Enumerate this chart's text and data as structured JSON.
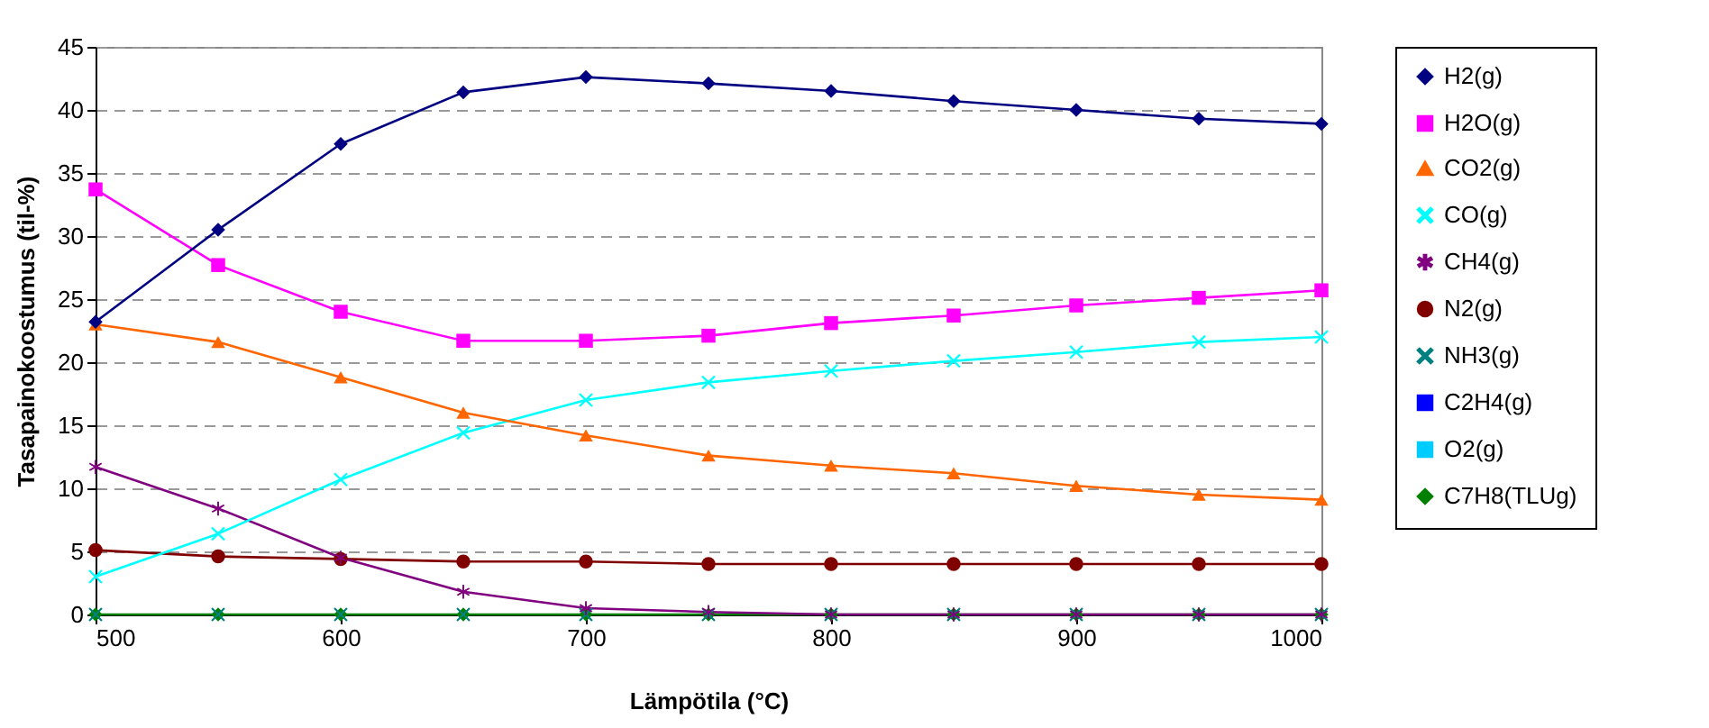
{
  "chart_data": {
    "type": "line",
    "xlabel": "Lämpötila (°C)",
    "ylabel": "Tasapainokoostumus (til-%)",
    "x": [
      500,
      550,
      600,
      650,
      700,
      750,
      800,
      850,
      900,
      950,
      1000
    ],
    "xlim": [
      500,
      1000
    ],
    "xticks": [
      500,
      600,
      700,
      800,
      900,
      1000
    ],
    "ylim": [
      0,
      45
    ],
    "yticks": [
      0,
      5,
      10,
      15,
      20,
      25,
      30,
      35,
      40,
      45
    ],
    "grid": "y",
    "legend": "right",
    "series": [
      {
        "name": "H2(g)",
        "color": "#000080",
        "marker": "diamond",
        "values": [
          23.2,
          30.5,
          37.3,
          41.4,
          42.6,
          42.1,
          41.5,
          40.7,
          40.0,
          39.3,
          38.9
        ]
      },
      {
        "name": "H2O(g)",
        "color": "#ff00ff",
        "marker": "square",
        "values": [
          33.7,
          27.7,
          24.0,
          21.7,
          21.7,
          22.1,
          23.1,
          23.7,
          24.5,
          25.1,
          25.7
        ]
      },
      {
        "name": "CO2(g)",
        "color": "#ff6600",
        "marker": "triangle",
        "values": [
          23.0,
          21.6,
          18.8,
          16.0,
          14.2,
          12.6,
          11.8,
          11.2,
          10.2,
          9.5,
          9.1
        ]
      },
      {
        "name": "CO(g)",
        "color": "#00ffff",
        "marker": "cross",
        "values": [
          3.0,
          6.4,
          10.7,
          14.4,
          17.0,
          18.4,
          19.3,
          20.1,
          20.8,
          21.6,
          22.0
        ]
      },
      {
        "name": "CH4(g)",
        "color": "#800080",
        "marker": "star",
        "values": [
          11.7,
          8.4,
          4.5,
          1.8,
          0.5,
          0.2,
          0,
          0,
          0,
          0,
          0
        ]
      },
      {
        "name": "N2(g)",
        "color": "#800000",
        "marker": "circle",
        "values": [
          5.1,
          4.6,
          4.4,
          4.2,
          4.2,
          4.0,
          4.0,
          4.0,
          4.0,
          4.0,
          4.0
        ]
      },
      {
        "name": "NH3(g)",
        "type": "scatter",
        "color": "#008080",
        "marker": "cross",
        "values": [
          0,
          0,
          0,
          0,
          0,
          0,
          0,
          0,
          0,
          0,
          0
        ]
      },
      {
        "name": "C2H4(g)",
        "type": "scatter",
        "color": "#0000ff",
        "marker": "square",
        "values": [
          null,
          null,
          null,
          null,
          null,
          null,
          null,
          null,
          null,
          null,
          null
        ]
      },
      {
        "name": "O2(g)",
        "type": "scatter",
        "color": "#00ccff",
        "marker": "square",
        "values": [
          null,
          null,
          null,
          null,
          null,
          null,
          null,
          null,
          null,
          null,
          null
        ]
      },
      {
        "name": "C7H8(TLUg)",
        "color": "#008000",
        "marker": "diamond",
        "values": [
          0,
          0,
          0,
          0,
          0,
          0,
          0,
          0,
          0,
          0,
          0
        ]
      }
    ]
  }
}
